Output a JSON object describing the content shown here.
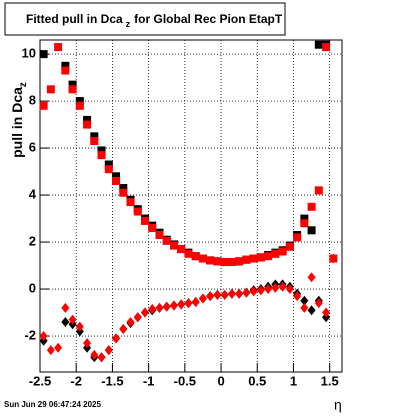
{
  "chart_data": {
    "type": "scatter",
    "title": [
      "Fitted pull in Dca",
      "z",
      "for Global Rec Pion EtapT"
    ],
    "y_label": [
      "pull in Dca",
      "z"
    ],
    "x_label": "η",
    "footer": "Sun Jun 29 06:47:24 2025",
    "xlim": [
      -2.5,
      1.67
    ],
    "ylim": [
      -3.53,
      10.6
    ],
    "xticks": [
      -2.5,
      -2,
      -1.5,
      -1,
      -0.5,
      0,
      0.5,
      1,
      1.5
    ],
    "yticks": [
      -2,
      0,
      2,
      4,
      6,
      8,
      10
    ],
    "grid": true,
    "x": [
      -2.45,
      -2.35,
      -2.25,
      -2.15,
      -2.05,
      -1.95,
      -1.85,
      -1.75,
      -1.65,
      -1.55,
      -1.45,
      -1.35,
      -1.25,
      -1.15,
      -1.05,
      -0.95,
      -0.85,
      -0.75,
      -0.65,
      -0.55,
      -0.45,
      -0.35,
      -0.25,
      -0.15,
      -0.05,
      0.05,
      0.15,
      0.25,
      0.35,
      0.45,
      0.55,
      0.65,
      0.75,
      0.85,
      0.95,
      1.05,
      1.15,
      1.25,
      1.35,
      1.45,
      1.55
    ],
    "series": [
      {
        "marker": "square",
        "color": "#000000",
        "values": [
          10,
          null,
          null,
          9.5,
          8.7,
          8.0,
          7.2,
          6.5,
          5.9,
          5.3,
          4.8,
          4.3,
          3.8,
          3.4,
          3.0,
          2.7,
          2.4,
          2.1,
          1.9,
          1.7,
          1.55,
          1.4,
          1.3,
          1.22,
          1.18,
          1.15,
          1.15,
          1.18,
          1.25,
          1.3,
          1.35,
          1.45,
          1.55,
          1.65,
          1.85,
          2.3,
          3.0,
          2.5,
          10.4,
          10.4,
          null
        ]
      },
      {
        "marker": "square",
        "color": "#ff0000",
        "values": [
          7.8,
          8.5,
          10.3,
          9.3,
          8.5,
          7.8,
          7.0,
          6.3,
          5.7,
          5.1,
          4.6,
          4.1,
          3.7,
          3.3,
          2.9,
          2.6,
          2.3,
          2.05,
          1.85,
          1.7,
          1.5,
          1.4,
          1.3,
          1.22,
          1.18,
          1.15,
          1.15,
          1.18,
          1.25,
          1.3,
          1.35,
          1.4,
          1.5,
          1.6,
          1.8,
          2.2,
          2.8,
          3.5,
          4.2,
          10.3,
          1.3
        ]
      },
      {
        "marker": "diamond",
        "color": "#000000",
        "values": [
          -2.2,
          null,
          null,
          -1.4,
          -1.5,
          -1.8,
          -2.5,
          -2.9,
          -2.9,
          -2.6,
          -2.1,
          -1.7,
          -1.45,
          -1.2,
          -1.0,
          -0.9,
          -0.8,
          -0.75,
          -0.7,
          -0.65,
          -0.6,
          -0.55,
          -0.4,
          -0.3,
          -0.25,
          -0.25,
          -0.2,
          -0.2,
          -0.15,
          -0.05,
          0.0,
          0.1,
          0.2,
          0.2,
          0.1,
          -0.2,
          -0.5,
          -0.9,
          -0.5,
          -1.2,
          null
        ]
      },
      {
        "marker": "diamond",
        "color": "#ff0000",
        "values": [
          -2.0,
          -2.6,
          -2.5,
          -0.8,
          -1.3,
          -1.6,
          -2.3,
          -2.8,
          -2.9,
          -2.6,
          -2.1,
          -1.7,
          -1.4,
          -1.2,
          -1.0,
          -0.85,
          -0.8,
          -0.75,
          -0.7,
          -0.65,
          -0.6,
          -0.55,
          -0.4,
          -0.3,
          -0.25,
          -0.25,
          -0.2,
          -0.2,
          -0.15,
          -0.1,
          -0.05,
          0.0,
          0.05,
          0.1,
          0.0,
          -0.3,
          -0.8,
          0.5,
          -0.6,
          -1.0,
          1.3
        ]
      }
    ]
  }
}
